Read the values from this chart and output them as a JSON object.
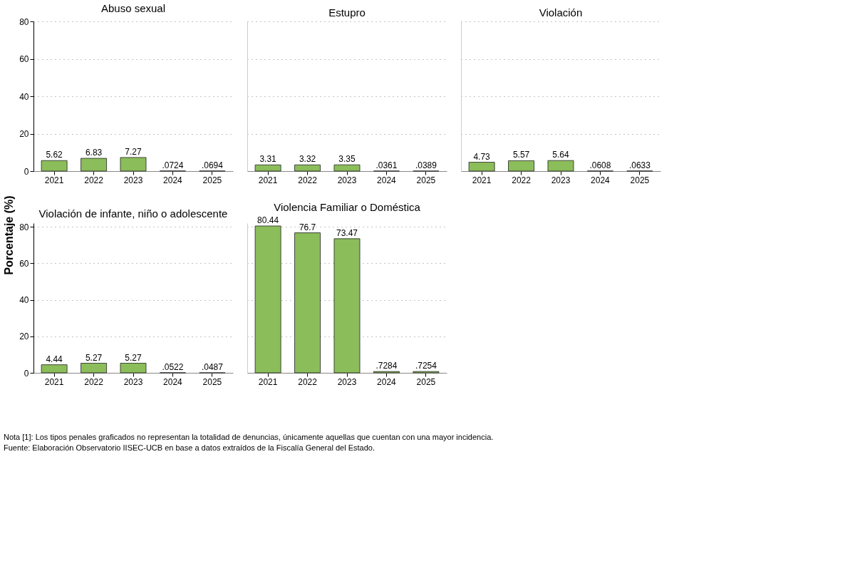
{
  "chart_data": [
    {
      "type": "bar",
      "title": "Abuso sexual",
      "ylabel": "Porcentaje (%)",
      "categories": [
        "2021",
        "2022",
        "2023",
        "2024",
        "2025"
      ],
      "values": [
        5.62,
        6.83,
        7.27,
        0.0724,
        0.0694
      ],
      "value_labels": [
        "5.62",
        "6.83",
        "7.27",
        ".0724",
        ".0694"
      ],
      "color": "#8bbd5a",
      "ylim": [
        0,
        80
      ],
      "yticks": [
        0,
        20,
        40,
        60,
        80
      ],
      "grid": "y"
    },
    {
      "type": "bar",
      "title": "Estupro",
      "categories": [
        "2021",
        "2022",
        "2023",
        "2024",
        "2025"
      ],
      "values": [
        3.31,
        3.32,
        3.35,
        0.0361,
        0.0389
      ],
      "value_labels": [
        "3.31",
        "3.32",
        "3.35",
        ".0361",
        ".0389"
      ],
      "color": "#8bbd5a",
      "ylim": [
        0,
        80
      ],
      "yticks": [
        0,
        20,
        40,
        60,
        80
      ],
      "grid": "y",
      "tick_labels": "x"
    },
    {
      "type": "bar",
      "title": "Violación",
      "categories": [
        "2021",
        "2022",
        "2023",
        "2024",
        "2025"
      ],
      "values": [
        4.73,
        5.57,
        5.64,
        0.0608,
        0.0633
      ],
      "value_labels": [
        "4.73",
        "5.57",
        "5.64",
        ".0608",
        ".0633"
      ],
      "color": "#8bbd5a",
      "ylim": [
        0,
        80
      ],
      "yticks": [
        0,
        20,
        40,
        60,
        80
      ],
      "grid": "y",
      "tick_labels": "x"
    },
    {
      "type": "bar",
      "title": "Violación de infante, niño o adolescente",
      "categories": [
        "2021",
        "2022",
        "2023",
        "2024",
        "2025"
      ],
      "values": [
        4.44,
        5.27,
        5.27,
        0.0522,
        0.0487
      ],
      "value_labels": [
        "4.44",
        "5.27",
        "5.27",
        ".0522",
        ".0487"
      ],
      "color": "#8bbd5a",
      "ylim": [
        0,
        82
      ],
      "yticks": [
        0,
        20,
        40,
        60,
        80
      ],
      "grid": "y"
    },
    {
      "type": "bar",
      "title": "Violencia Familiar o Doméstica",
      "categories": [
        "2021",
        "2022",
        "2023",
        "2024",
        "2025"
      ],
      "values": [
        80.44,
        76.7,
        73.47,
        0.7284,
        0.7254
      ],
      "value_labels": [
        "80.44",
        "76.7",
        "73.47",
        ".7284",
        ".7254"
      ],
      "color": "#8bbd5a",
      "ylim": [
        0,
        82
      ],
      "yticks": [
        0,
        20,
        40,
        60,
        80
      ],
      "grid": "y",
      "tick_labels": "x",
      "annotations": [
        "Nota [1]: Los tipos penales graficados no representan la totalidad de denuncias, únicamente aquellas que cuentan con una mayor incidencia.",
        "Fuente: Elaboración Observatorio IISEC-UCB en base a datos extraídos de la Fiscalía General del Estado."
      ]
    }
  ]
}
